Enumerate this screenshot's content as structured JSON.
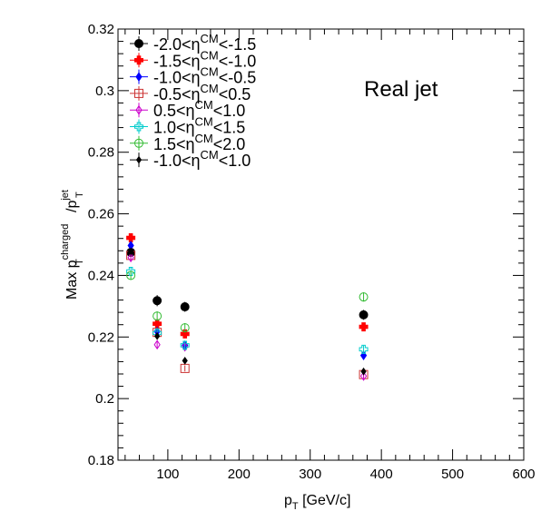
{
  "chart_data": {
    "type": "scatter",
    "title": "",
    "annotation": "Real jet",
    "xlabel": {
      "main": "p",
      "sub": "T",
      "rest": " [GeV/c]"
    },
    "ylabel": {
      "main": "Max p",
      "sup": "charged",
      "sub": "T",
      "slash": "/p",
      "sup2": "jet",
      "sub2": "T"
    },
    "xlim": [
      30,
      600
    ],
    "ylim": [
      0.18,
      0.32
    ],
    "xticks": [
      100,
      200,
      300,
      400,
      500,
      600
    ],
    "xtick_labels": [
      "100",
      "200",
      "300",
      "400",
      "500",
      "600"
    ],
    "yticks": [
      0.18,
      0.2,
      0.22,
      0.24,
      0.26,
      0.28,
      0.3,
      0.32
    ],
    "ytick_labels": [
      "0.18",
      "0.2",
      "0.22",
      "0.24",
      "0.26",
      "0.28",
      "0.3",
      "0.32"
    ],
    "grid": false,
    "legend_position": "top-left",
    "series": [
      {
        "name": "-2.0<η_CM<-1.5",
        "legend": {
          "pre": "-2.0<η",
          "sup": "CM",
          "post": "<-1.5"
        },
        "marker": "circle-filled",
        "color": "#000000",
        "x": [
          48,
          85,
          124,
          375
        ],
        "y": [
          0.2475,
          0.2318,
          0.2298,
          0.2272
        ],
        "err": [
          0.0012,
          0.0018,
          0.0016,
          0.0016
        ]
      },
      {
        "name": "-1.5<η_CM<-1.0",
        "legend": {
          "pre": "-1.5<η",
          "sup": "CM",
          "post": "<-1.0"
        },
        "marker": "cross-filled",
        "color": "#ff0000",
        "x": [
          48,
          85,
          124,
          375
        ],
        "y": [
          0.2522,
          0.2243,
          0.221,
          0.2233
        ],
        "err": [
          0.0012,
          0.0015,
          0.0013,
          0.0012
        ]
      },
      {
        "name": "-1.0<η_CM<-0.5",
        "legend": {
          "pre": "-1.0<η",
          "sup": "CM",
          "post": "<-0.5"
        },
        "marker": "diamond-filled",
        "color": "#0000ff",
        "x": [
          48,
          85,
          124,
          375
        ],
        "y": [
          0.2497,
          0.2218,
          0.2173,
          0.214
        ],
        "err": [
          0.001,
          0.0012,
          0.0012,
          0.001
        ]
      },
      {
        "name": "-0.5<η_CM<0.5",
        "legend": {
          "pre": "-0.5<η",
          "sup": "CM",
          "post": "<0.5"
        },
        "marker": "square-open",
        "color": "#cc3333",
        "x": [
          48,
          85,
          124,
          375
        ],
        "y": [
          0.2465,
          0.2215,
          0.2098,
          0.2078
        ],
        "err": [
          0.001,
          0.0012,
          0.001,
          0.001
        ]
      },
      {
        "name": "0.5<η_CM<1.0",
        "legend": {
          "pre": "0.5<η",
          "sup": "CM",
          "post": "<1.0"
        },
        "marker": "diamond-open",
        "color": "#cc00cc",
        "x": [
          48,
          85,
          124,
          375
        ],
        "y": [
          0.2458,
          0.2175,
          0.2168,
          0.2073
        ],
        "err": [
          0.001,
          0.0012,
          0.001,
          0.001
        ]
      },
      {
        "name": "1.0<η_CM<1.5",
        "legend": {
          "pre": "1.0<η",
          "sup": "CM",
          "post": "<1.5"
        },
        "marker": "cross-open",
        "color": "#00cccc",
        "x": [
          48,
          85,
          124,
          375
        ],
        "y": [
          0.2413,
          0.2213,
          0.2173,
          0.216
        ],
        "err": [
          0.0012,
          0.0012,
          0.0012,
          0.0012
        ]
      },
      {
        "name": "1.5<η_CM<2.0",
        "legend": {
          "pre": "1.5<η",
          "sup": "CM",
          "post": "<2.0"
        },
        "marker": "circle-open",
        "color": "#33bb33",
        "x": [
          48,
          85,
          124,
          375
        ],
        "y": [
          0.24,
          0.2268,
          0.223,
          0.233
        ],
        "err": [
          0.0015,
          0.0015,
          0.0015,
          0.0015
        ]
      },
      {
        "name": "-1.0<η_CM<1.0",
        "legend": {
          "pre": "-1.0<η",
          "sup": "CM",
          "post": "<1.0"
        },
        "marker": "diamond-filled-small",
        "color": "#000000",
        "x": [
          48,
          85,
          124,
          375
        ],
        "y": [
          0.2478,
          0.2203,
          0.2123,
          0.2088
        ],
        "err": [
          0.0008,
          0.001,
          0.001,
          0.001
        ]
      }
    ]
  }
}
